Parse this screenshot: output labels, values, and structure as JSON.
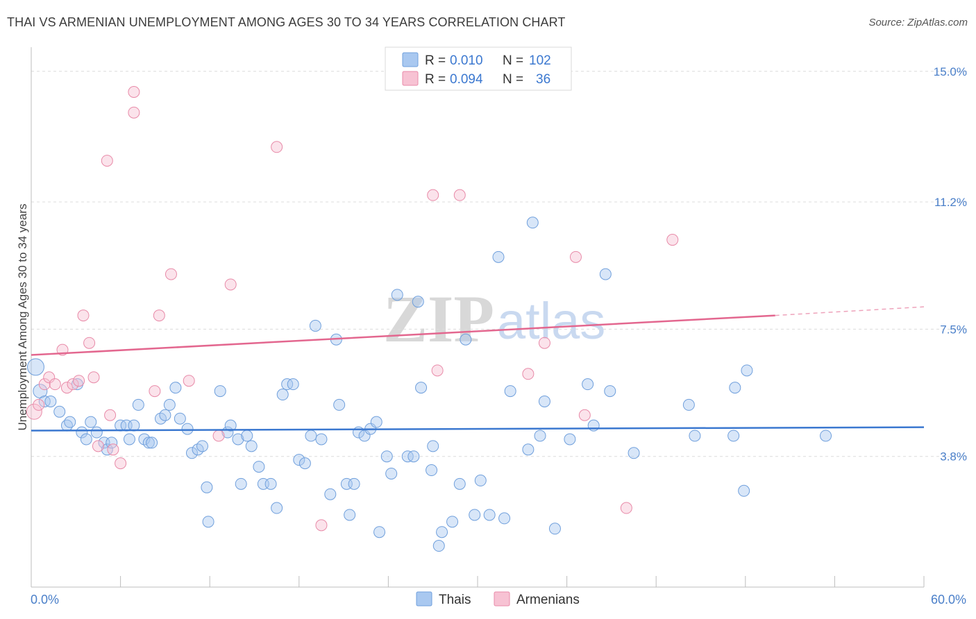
{
  "title": "THAI VS ARMENIAN UNEMPLOYMENT AMONG AGES 30 TO 34 YEARS CORRELATION CHART",
  "source": "Source: ZipAtlas.com",
  "watermark": {
    "zip": "ZIP",
    "atlas": "atlas"
  },
  "legend_top": [
    {
      "r_label": "R =",
      "r_value": "0.010",
      "n_label": "N =",
      "n_value": "102",
      "color": "#a9c8f0",
      "stroke": "#6f9fdc"
    },
    {
      "r_label": "R =",
      "r_value": "0.094",
      "n_label": "N =",
      "n_value": "36",
      "color": "#f7c2d3",
      "stroke": "#e88aa8"
    }
  ],
  "legend_bottom": [
    {
      "label": "Thais",
      "color": "#a9c8f0",
      "stroke": "#6f9fdc"
    },
    {
      "label": "Armenians",
      "color": "#f7c2d3",
      "stroke": "#e88aa8"
    }
  ],
  "chart_data": {
    "type": "scatter",
    "title": "THAI VS ARMENIAN UNEMPLOYMENT AMONG AGES 30 TO 34 YEARS CORRELATION CHART",
    "xlabel": "",
    "ylabel": "Unemployment Among Ages 30 to 34 years",
    "xlim": [
      0,
      60
    ],
    "ylim": [
      0,
      15.5
    ],
    "x_tick_labels": [
      "0.0%",
      "60.0%"
    ],
    "y_ticks": [
      3.8,
      7.5,
      11.2,
      15.0
    ],
    "y_tick_labels": [
      "3.8%",
      "7.5%",
      "11.2%",
      "15.0%"
    ],
    "grid": "horizontal dashed",
    "legend_position": "top-center",
    "series": [
      {
        "name": "Thais",
        "color": "#6f9fdc",
        "trend": {
          "x": [
            0,
            60
          ],
          "y": [
            4.55,
            4.65
          ]
        },
        "points": [
          [
            0.3,
            6.4
          ],
          [
            0.6,
            5.7
          ],
          [
            0.9,
            5.4
          ],
          [
            1.3,
            5.4
          ],
          [
            1.9,
            5.1
          ],
          [
            2.4,
            4.7
          ],
          [
            2.6,
            4.8
          ],
          [
            3.1,
            5.9
          ],
          [
            3.4,
            4.5
          ],
          [
            3.7,
            4.3
          ],
          [
            4.0,
            4.8
          ],
          [
            4.4,
            4.5
          ],
          [
            4.9,
            4.2
          ],
          [
            5.1,
            4.0
          ],
          [
            5.4,
            4.2
          ],
          [
            6.0,
            4.7
          ],
          [
            6.4,
            4.7
          ],
          [
            6.6,
            4.3
          ],
          [
            6.9,
            4.7
          ],
          [
            7.2,
            5.3
          ],
          [
            7.6,
            4.3
          ],
          [
            7.9,
            4.2
          ],
          [
            8.1,
            4.2
          ],
          [
            8.7,
            4.9
          ],
          [
            9.0,
            5.0
          ],
          [
            9.3,
            5.3
          ],
          [
            9.7,
            5.8
          ],
          [
            10.0,
            4.9
          ],
          [
            10.5,
            4.6
          ],
          [
            10.8,
            3.9
          ],
          [
            11.2,
            4.0
          ],
          [
            11.5,
            4.1
          ],
          [
            11.8,
            2.9
          ],
          [
            11.9,
            1.9
          ],
          [
            12.7,
            5.7
          ],
          [
            13.2,
            4.5
          ],
          [
            13.4,
            4.7
          ],
          [
            13.9,
            4.3
          ],
          [
            14.1,
            3.0
          ],
          [
            14.5,
            4.4
          ],
          [
            14.8,
            4.1
          ],
          [
            15.3,
            3.5
          ],
          [
            15.6,
            3.0
          ],
          [
            16.1,
            3.0
          ],
          [
            16.5,
            2.3
          ],
          [
            16.9,
            5.6
          ],
          [
            17.2,
            5.9
          ],
          [
            17.6,
            5.9
          ],
          [
            18.0,
            3.7
          ],
          [
            18.4,
            3.6
          ],
          [
            18.8,
            4.4
          ],
          [
            19.1,
            7.6
          ],
          [
            19.5,
            4.3
          ],
          [
            20.1,
            2.7
          ],
          [
            20.5,
            7.2
          ],
          [
            20.7,
            5.3
          ],
          [
            21.2,
            3.0
          ],
          [
            21.4,
            2.1
          ],
          [
            21.7,
            3.0
          ],
          [
            22.0,
            4.5
          ],
          [
            22.4,
            4.4
          ],
          [
            22.8,
            4.6
          ],
          [
            23.2,
            4.8
          ],
          [
            23.4,
            1.6
          ],
          [
            23.9,
            3.8
          ],
          [
            24.2,
            3.3
          ],
          [
            24.6,
            8.5
          ],
          [
            25.3,
            3.8
          ],
          [
            25.7,
            3.8
          ],
          [
            26.0,
            8.3
          ],
          [
            26.2,
            5.8
          ],
          [
            26.9,
            3.4
          ],
          [
            27.0,
            4.1
          ],
          [
            27.4,
            1.2
          ],
          [
            27.6,
            1.6
          ],
          [
            28.3,
            1.9
          ],
          [
            28.8,
            3.0
          ],
          [
            29.2,
            7.2
          ],
          [
            29.8,
            2.1
          ],
          [
            30.2,
            3.1
          ],
          [
            30.8,
            2.1
          ],
          [
            31.4,
            9.6
          ],
          [
            31.8,
            2.0
          ],
          [
            32.2,
            5.7
          ],
          [
            33.4,
            4.0
          ],
          [
            33.7,
            10.6
          ],
          [
            34.2,
            4.4
          ],
          [
            34.5,
            5.4
          ],
          [
            35.2,
            1.7
          ],
          [
            36.2,
            4.3
          ],
          [
            37.4,
            5.9
          ],
          [
            37.8,
            4.7
          ],
          [
            38.6,
            9.1
          ],
          [
            38.9,
            5.7
          ],
          [
            40.5,
            3.9
          ],
          [
            44.6,
            4.4
          ],
          [
            44.2,
            5.3
          ],
          [
            47.2,
            4.4
          ],
          [
            47.3,
            5.8
          ],
          [
            47.9,
            2.8
          ],
          [
            48.1,
            6.3
          ],
          [
            53.4,
            4.4
          ]
        ]
      },
      {
        "name": "Armenians",
        "color": "#e88aa8",
        "trend": {
          "x": [
            0,
            50
          ],
          "y": [
            6.75,
            7.9
          ]
        },
        "trend_dashed": {
          "x": [
            50,
            60
          ],
          "y": [
            7.9,
            8.15
          ]
        },
        "points": [
          [
            0.2,
            5.1
          ],
          [
            0.5,
            5.3
          ],
          [
            0.9,
            5.9
          ],
          [
            1.2,
            6.1
          ],
          [
            1.6,
            5.9
          ],
          [
            2.1,
            6.9
          ],
          [
            2.4,
            5.8
          ],
          [
            2.8,
            5.9
          ],
          [
            3.2,
            6.0
          ],
          [
            3.5,
            7.9
          ],
          [
            3.9,
            7.1
          ],
          [
            4.2,
            6.1
          ],
          [
            4.5,
            4.1
          ],
          [
            5.1,
            12.4
          ],
          [
            5.3,
            5.0
          ],
          [
            5.5,
            4.0
          ],
          [
            6.0,
            3.6
          ],
          [
            6.9,
            14.4
          ],
          [
            6.9,
            13.8
          ],
          [
            8.3,
            5.7
          ],
          [
            8.6,
            7.9
          ],
          [
            9.4,
            9.1
          ],
          [
            10.6,
            6.0
          ],
          [
            12.6,
            4.4
          ],
          [
            13.4,
            8.8
          ],
          [
            16.5,
            12.8
          ],
          [
            19.5,
            1.8
          ],
          [
            27.0,
            11.4
          ],
          [
            27.3,
            6.3
          ],
          [
            28.8,
            11.4
          ],
          [
            33.4,
            6.2
          ],
          [
            34.5,
            7.1
          ],
          [
            36.6,
            9.6
          ],
          [
            37.2,
            5.0
          ],
          [
            40.0,
            2.3
          ],
          [
            43.1,
            10.1
          ]
        ]
      }
    ]
  }
}
